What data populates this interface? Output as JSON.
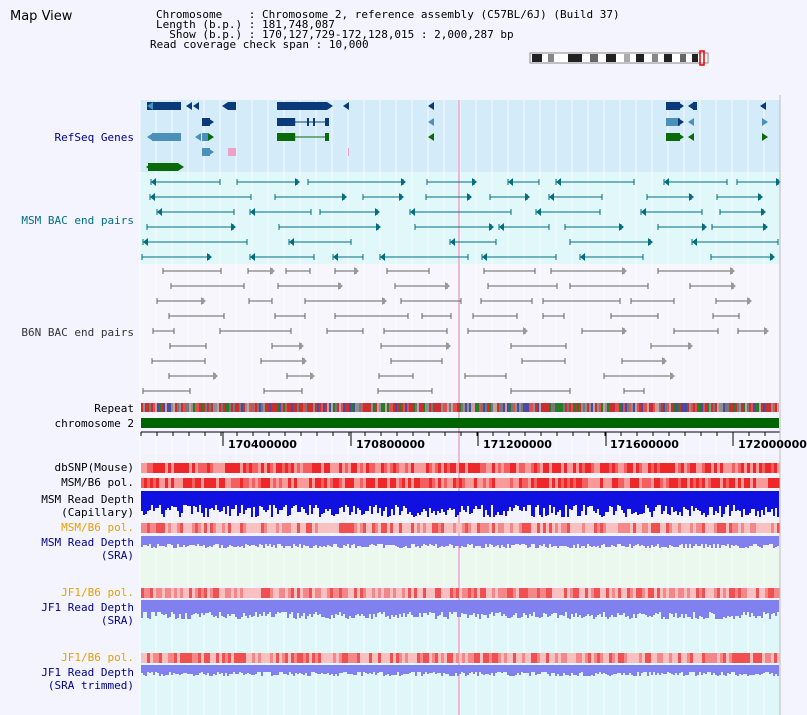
{
  "page": {
    "title": "Map View"
  },
  "info": {
    "chromosome_key": "Chromosome",
    "chromosome_val": "Chromosome 2, reference assembly (C57BL/6J) (Build 37)",
    "length_key": "Length (b.p.)",
    "length_val": "181,748,087",
    "show_key": "Show (b.p.)",
    "show_val": "170,127,729-172,128,015 : 2,000,287 bp",
    "coverage_key": "Read coverage check span",
    "coverage_val": "10,000"
  },
  "tracks": {
    "refseq": "RefSeq Genes",
    "msm_bac": "MSM BAC end pairs",
    "b6n_bac": "B6N BAC end pairs",
    "repeat": "Repeat",
    "chromosome": "chromosome 2",
    "dbsnp": "dbSNP(Mouse)",
    "msm_b6_pol_1": "MSM/B6 pol.",
    "msm_depth_cap_1": "MSM Read Depth",
    "msm_depth_cap_2": "(Capillary)",
    "msm_b6_pol_2": "MSM/B6 pol.",
    "msm_depth_sra_1": "MSM Read Depth",
    "msm_depth_sra_2": "(SRA)",
    "jf1_b6_pol_1": "JF1/B6 pol.",
    "jf1_depth_sra_1": "JF1 Read Depth",
    "jf1_depth_sra_2": "(SRA)",
    "jf1_b6_pol_2": "JF1/B6 pol.",
    "jf1_depth_trim_1": "JF1 Read Depth",
    "jf1_depth_trim_2": "(SRA trimmed)"
  },
  "axis": {
    "ticks": [
      "170400000",
      "170800000",
      "171200000",
      "171600000",
      "172000000"
    ]
  },
  "colors": {
    "refseq_bg": "#d4ecfa",
    "msm_bg": "#e0f8fa",
    "b6n_bg": "#f4f4ff",
    "gene_dark": "#0a3a7a",
    "gene_light": "#4a90b8",
    "gene_green": "#0a6a0a",
    "msm_line": "#006e7f",
    "b6n_line": "#666666",
    "chrom_bar": "#006400",
    "snp_red": "#ee3030",
    "depth_blue": "#1010e0",
    "depth_light": "#8080ee"
  }
}
